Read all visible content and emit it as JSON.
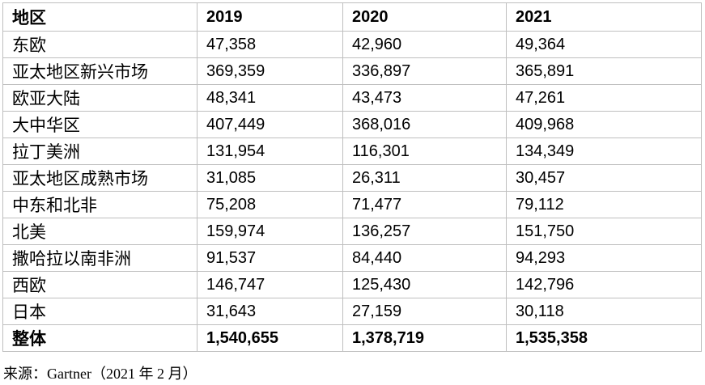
{
  "colors": {
    "background": "#ffffff",
    "border": "#bfbfbf",
    "text": "#000000"
  },
  "table": {
    "header": {
      "region": "地区",
      "y2019": "2019",
      "y2020": "2020",
      "y2021": "2021"
    },
    "rows": [
      {
        "region": "东欧",
        "y2019": "47,358",
        "y2020": "42,960",
        "y2021": "49,364"
      },
      {
        "region": "亚太地区新兴市场",
        "y2019": "369,359",
        "y2020": "336,897",
        "y2021": "365,891"
      },
      {
        "region": "欧亚大陆",
        "y2019": "48,341",
        "y2020": "43,473",
        "y2021": "47,261"
      },
      {
        "region": "大中华区",
        "y2019": "407,449",
        "y2020": "368,016",
        "y2021": "409,968"
      },
      {
        "region": "拉丁美洲",
        "y2019": "131,954",
        "y2020": "116,301",
        "y2021": "134,349"
      },
      {
        "region": "亚太地区成熟市场",
        "y2019": "31,085",
        "y2020": "26,311",
        "y2021": "30,457"
      },
      {
        "region": "中东和北非",
        "y2019": "75,208",
        "y2020": "71,477",
        "y2021": "79,112"
      },
      {
        "region": "北美",
        "y2019": "159,974",
        "y2020": "136,257",
        "y2021": "151,750"
      },
      {
        "region": "撒哈拉以南非洲",
        "y2019": "91,537",
        "y2020": "84,440",
        "y2021": "94,293"
      },
      {
        "region": "西欧",
        "y2019": "146,747",
        "y2020": "125,430",
        "y2021": "142,796"
      },
      {
        "region": "日本",
        "y2019": "31,643",
        "y2020": "27,159",
        "y2021": "30,118"
      }
    ],
    "total_row": {
      "region": "整体",
      "y2019": "1,540,655",
      "y2020": "1,378,719",
      "y2021": "1,535,358"
    }
  },
  "footer": {
    "source_text": "来源：Gartner（2021 年 2 月）"
  }
}
